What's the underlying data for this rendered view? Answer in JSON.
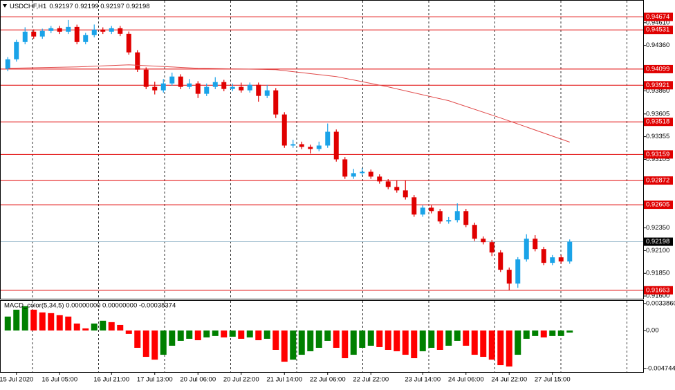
{
  "chart_data": {
    "type": "candlestick",
    "title": "USDCHF,H1",
    "quote": "0.92197 0.92199 0.92197 0.92198",
    "categories": [
      null,
      "15 Jul 2020",
      null,
      null,
      null,
      null,
      "16 Jul 05:00",
      null,
      null,
      null,
      null,
      null,
      "16 Jul 21:00",
      null,
      null,
      null,
      null,
      "17 Jul 13:00",
      null,
      null,
      null,
      null,
      "20 Jul 06:00",
      null,
      null,
      null,
      null,
      "20 Jul 22:00",
      null,
      null,
      null,
      null,
      "21 Jul 14:00",
      null,
      null,
      null,
      null,
      "22 Jul 06:00",
      null,
      null,
      null,
      null,
      "22 Jul 22:00",
      null,
      null,
      null,
      null,
      null,
      "23 Jul 14:00",
      null,
      null,
      null,
      null,
      "24 Jul 06:00",
      null,
      null,
      null,
      null,
      "24 Jul 22:00",
      null,
      null,
      null,
      null,
      "27 Jul 15:00",
      null,
      null
    ],
    "open": [
      0.941,
      0.94207,
      0.94397,
      0.94511,
      0.94458,
      0.94519,
      0.94549,
      0.94511,
      0.94564,
      0.94397,
      0.94473,
      0.94534,
      0.94511,
      0.94549,
      0.94488,
      0.94283,
      0.94093,
      0.93903,
      0.93865,
      0.93941,
      0.94017,
      0.93903,
      0.93941,
      0.93827,
      0.93903,
      0.93956,
      0.9388,
      0.93903,
      0.93865,
      0.93926,
      0.93804,
      0.93865,
      0.93599,
      0.93257,
      0.93272,
      0.93242,
      0.93219,
      0.93257,
      0.93409,
      0.93105,
      0.92915,
      0.92953,
      0.92968,
      0.92915,
      0.92862,
      0.92801,
      0.92763,
      0.92687,
      0.92497,
      0.92573,
      0.92535,
      0.92421,
      0.92436,
      0.92535,
      0.92383,
      0.92231,
      0.92193,
      0.92079,
      0.91889,
      0.91737,
      0.92003,
      0.92231,
      0.92117,
      0.91965,
      0.92026,
      0.9198
    ],
    "high": [
      0.94232,
      0.94422,
      0.9456,
      0.94536,
      0.94544,
      0.94574,
      0.94574,
      0.9464,
      0.94589,
      0.94498,
      0.9459,
      0.94559,
      0.94574,
      0.94574,
      0.94513,
      0.94308,
      0.94118,
      0.9396,
      0.9399,
      0.9406,
      0.94042,
      0.9399,
      0.93966,
      0.9394,
      0.9401,
      0.93981,
      0.9394,
      0.9395,
      0.93951,
      0.93951,
      0.93925,
      0.9389,
      0.93624,
      0.9332,
      0.933,
      0.93267,
      0.933,
      0.935,
      0.93434,
      0.9313,
      0.93,
      0.9301,
      0.92993,
      0.9294,
      0.92887,
      0.92872,
      0.92872,
      0.92712,
      0.92598,
      0.92598,
      0.9256,
      0.9247,
      0.9262,
      0.9256,
      0.92408,
      0.92256,
      0.92218,
      0.92104,
      0.91914,
      0.92028,
      0.9228,
      0.9227,
      0.92142,
      0.92051,
      0.92051,
      0.92223
    ],
    "low": [
      0.94075,
      0.94182,
      0.94372,
      0.94433,
      0.94433,
      0.94494,
      0.94486,
      0.94486,
      0.94372,
      0.94372,
      0.94448,
      0.94486,
      0.94486,
      0.94463,
      0.94258,
      0.94068,
      0.93878,
      0.9382,
      0.9384,
      0.93916,
      0.93878,
      0.93878,
      0.9378,
      0.93802,
      0.93878,
      0.93855,
      0.93855,
      0.9384,
      0.9384,
      0.9374,
      0.93779,
      0.9356,
      0.93232,
      0.93232,
      0.93217,
      0.9317,
      0.93194,
      0.93232,
      0.9308,
      0.9289,
      0.9289,
      0.92928,
      0.9289,
      0.92837,
      0.92776,
      0.92738,
      0.92662,
      0.92472,
      0.92472,
      0.9251,
      0.92396,
      0.92396,
      0.92411,
      0.92358,
      0.92206,
      0.92168,
      0.9204,
      0.91864,
      0.91663,
      0.9169,
      0.91978,
      0.92092,
      0.9194,
      0.9194,
      0.91955,
      0.91955
    ],
    "close": [
      0.94207,
      0.94397,
      0.94511,
      0.94458,
      0.94519,
      0.94549,
      0.94511,
      0.94564,
      0.94397,
      0.94473,
      0.94534,
      0.94511,
      0.94549,
      0.94488,
      0.94283,
      0.94093,
      0.93903,
      0.93865,
      0.93941,
      0.94017,
      0.93903,
      0.93941,
      0.93827,
      0.93903,
      0.93956,
      0.9388,
      0.93903,
      0.93865,
      0.93926,
      0.93804,
      0.93865,
      0.93599,
      0.93257,
      0.93272,
      0.93242,
      0.93219,
      0.93257,
      0.93409,
      0.93105,
      0.92915,
      0.92953,
      0.92968,
      0.92915,
      0.92862,
      0.92801,
      0.92763,
      0.92687,
      0.92497,
      0.92573,
      0.92535,
      0.92421,
      0.92436,
      0.92535,
      0.92383,
      0.92231,
      0.92193,
      0.92079,
      0.91889,
      0.91737,
      0.92003,
      0.92231,
      0.92117,
      0.91965,
      0.92026,
      0.9198,
      0.92198
    ],
    "up_color": "#1aa3e8",
    "down_color": "#e00000",
    "ma": {
      "color": "#e04848",
      "x": [
        0,
        8,
        14,
        22,
        31,
        38,
        44,
        51,
        57,
        65
      ],
      "values": [
        0.94108,
        0.94123,
        0.94146,
        0.94108,
        0.94093,
        0.94017,
        0.93903,
        0.93751,
        0.93561,
        0.93295
      ]
    },
    "ylim": [
      0.9157,
      0.9486
    ],
    "yticks": [
      {
        "value": 0.9461,
        "label": "0.94610"
      },
      {
        "value": 0.9436,
        "label": "0.94360"
      },
      {
        "value": 0.9386,
        "label": "0.93860"
      },
      {
        "value": 0.93605,
        "label": "0.93605"
      },
      {
        "value": 0.93355,
        "label": "0.93355"
      },
      {
        "value": 0.93105,
        "label": "0.93105"
      },
      {
        "value": 0.9235,
        "label": "0.92350"
      },
      {
        "value": 0.921,
        "label": "0.92100"
      },
      {
        "value": 0.9185,
        "label": "0.91850"
      },
      {
        "value": 0.916,
        "label": "0.91600"
      }
    ],
    "levels": [
      {
        "value": 0.94674,
        "label": "0.94674"
      },
      {
        "value": 0.94531,
        "label": "0.94531"
      },
      {
        "value": 0.94099,
        "label": "0.94099"
      },
      {
        "value": 0.93921,
        "label": "0.93921"
      },
      {
        "value": 0.93518,
        "label": "0.93518"
      },
      {
        "value": 0.93159,
        "label": "0.93159"
      },
      {
        "value": 0.92872,
        "label": "0.92872"
      },
      {
        "value": 0.92605,
        "label": "0.92605"
      },
      {
        "value": 0.91663,
        "label": "0.91663"
      }
    ],
    "level_color": "#e00000",
    "current": {
      "value": 0.92198,
      "label": "0.92198"
    },
    "macd": {
      "label": "MACD_color(5,34,5) 0.00000000 0.00000000 -0.00038374",
      "values": [
        0.00174,
        0.0026,
        0.00304,
        0.0026,
        0.00226,
        0.00217,
        0.00191,
        0.00174,
        0.00087,
        0.00026,
        0.00087,
        0.00122,
        0.00104,
        0.00069,
        -0.00043,
        -0.00217,
        -0.0033,
        -0.00365,
        -0.00304,
        -0.00191,
        -0.0013,
        -0.00104,
        -0.00122,
        -0.00087,
        -0.00069,
        -0.00087,
        -0.00078,
        -0.00104,
        -0.00087,
        -0.00122,
        -0.00104,
        -0.00243,
        -0.00391,
        -0.00365,
        -0.00304,
        -0.0026,
        -0.00217,
        -0.0013,
        -0.00217,
        -0.00347,
        -0.00304,
        -0.00217,
        -0.00191,
        -0.00208,
        -0.00243,
        -0.0026,
        -0.00304,
        -0.00347,
        -0.0026,
        -0.00217,
        -0.00243,
        -0.00191,
        -0.0013,
        -0.00191,
        -0.00304,
        -0.0033,
        -0.00365,
        -0.00434,
        -0.00451,
        -0.00304,
        -0.00104,
        -0.00069,
        -0.00087,
        -0.00069,
        -0.00069,
        -0.00026
      ],
      "up_color": "#008000",
      "down_color": "#ff0000",
      "ylim": [
        -0.0052,
        0.0038
      ],
      "yticks": [
        {
          "value": 0.003386,
          "label": "0.0033860"
        },
        {
          "value": 0,
          "label": "0.00"
        },
        {
          "value": -0.0047448,
          "label": "-0.0047448"
        }
      ]
    }
  }
}
